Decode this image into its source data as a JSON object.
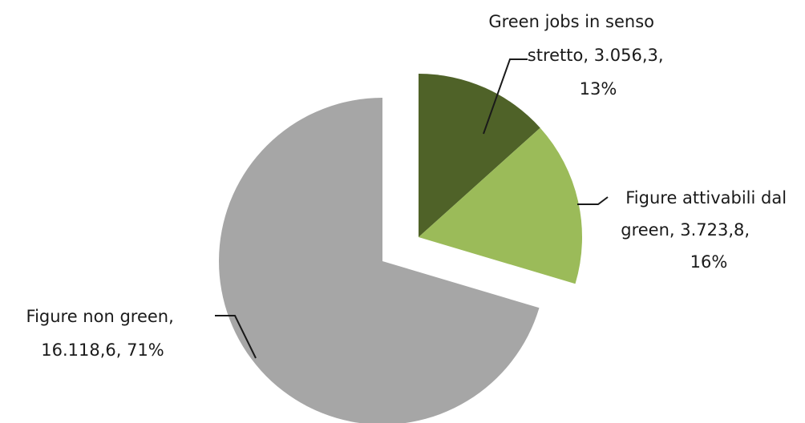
{
  "chart_data": {
    "type": "pie",
    "title": "",
    "slices": [
      {
        "category": "Green jobs in senso stretto",
        "value": 3056.3,
        "value_label": "3.056,3",
        "percent_label": "13%",
        "label_lines": [
          "Green jobs in senso",
          "stretto, 3.056,3,",
          "13%"
        ],
        "color": "#4f6228",
        "exploded": true
      },
      {
        "category": "Figure attivabili dal green",
        "value": 3723.8,
        "value_label": "3.723,8",
        "percent_label": "16%",
        "label_lines": [
          "Figure attivabili dal",
          "green, 3.723,8,",
          "16%"
        ],
        "color": "#9bbb59",
        "exploded": true
      },
      {
        "category": "Figure non green",
        "value": 16118.6,
        "value_label": "16.118,6",
        "percent_label": "71%",
        "label_lines": [
          "Figure non green,",
          "16.118,6, 71%"
        ],
        "color": "#a6a6a6",
        "exploded": false
      }
    ],
    "legend": "none",
    "start_angle": "12 o'clock, clockwise"
  }
}
